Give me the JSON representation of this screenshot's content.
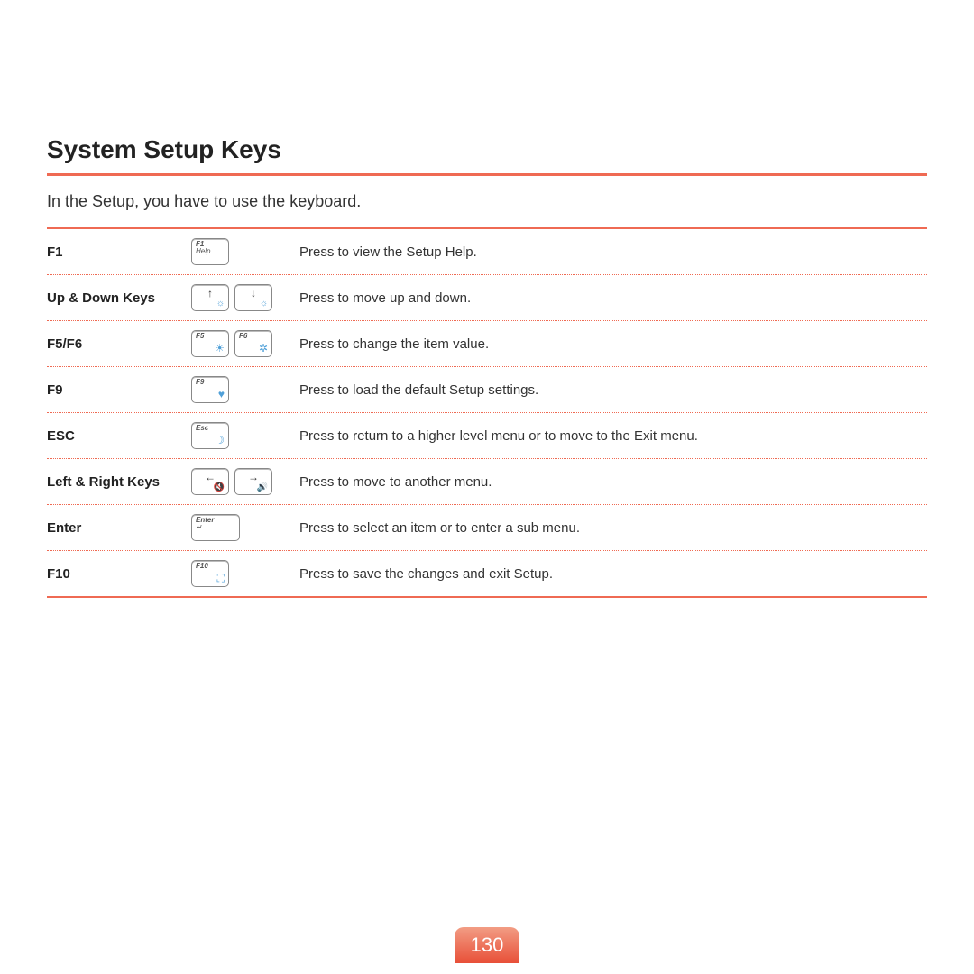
{
  "colors": {
    "accent": "#ef6a53",
    "accent_gradient_top": "#f29d84",
    "accent_gradient_bot": "#e84f38",
    "rule": "#ef6a53",
    "dotted": "#ef6a53",
    "icon_blue": "#50a0d8",
    "text": "#333333",
    "bg": "#ffffff"
  },
  "page_number": "130",
  "title": "System Setup Keys",
  "subtitle": "In the Setup, you have to use the keyboard.",
  "rows": [
    {
      "key": "F1",
      "desc": "Press to view the Setup Help.",
      "caps": [
        {
          "type": "labeled",
          "label": "F1",
          "sub": "Help"
        }
      ]
    },
    {
      "key": "Up & Down Keys",
      "desc": "Press to move up and down.",
      "caps": [
        {
          "type": "arrow",
          "arrow": "↑",
          "icon": "☼",
          "icon_color": "#50a0d8"
        },
        {
          "type": "arrow",
          "arrow": "↓",
          "icon": "☼",
          "icon_color": "#50a0d8"
        }
      ]
    },
    {
      "key": "F5/F6",
      "desc": "Press to change the item value.",
      "caps": [
        {
          "type": "labeled",
          "label": "F5",
          "icon": "☀",
          "icon_color": "#50a0d8"
        },
        {
          "type": "labeled",
          "label": "F6",
          "icon": "✲",
          "icon_color": "#50a0d8"
        }
      ]
    },
    {
      "key": "F9",
      "desc": "Press to load the default Setup settings.",
      "caps": [
        {
          "type": "labeled",
          "label": "F9",
          "icon": "♥",
          "icon_color": "#50a0d8"
        }
      ]
    },
    {
      "key": "ESC",
      "desc": "Press to return to a higher level menu or to move to the Exit menu.",
      "caps": [
        {
          "type": "labeled",
          "label": "Esc",
          "icon": "☽",
          "icon_color": "#50a0d8"
        }
      ]
    },
    {
      "key": "Left & Right Keys",
      "desc": "Press to move to another menu.",
      "caps": [
        {
          "type": "arrow",
          "arrow": "←",
          "icon": "🔇",
          "icon_color": "#50a0d8"
        },
        {
          "type": "arrow",
          "arrow": "→",
          "icon": "🔊",
          "icon_color": "#50a0d8"
        }
      ]
    },
    {
      "key": "Enter",
      "desc": "Press to select an item or to enter a sub menu.",
      "caps": [
        {
          "type": "labeled",
          "label": "Enter",
          "sub": "↵",
          "wide": true
        }
      ]
    },
    {
      "key": "F10",
      "desc": "Press to save the changes and exit Setup.",
      "caps": [
        {
          "type": "labeled",
          "label": "F10",
          "icon": "⛶",
          "icon_color": "#50a0d8"
        }
      ]
    }
  ]
}
